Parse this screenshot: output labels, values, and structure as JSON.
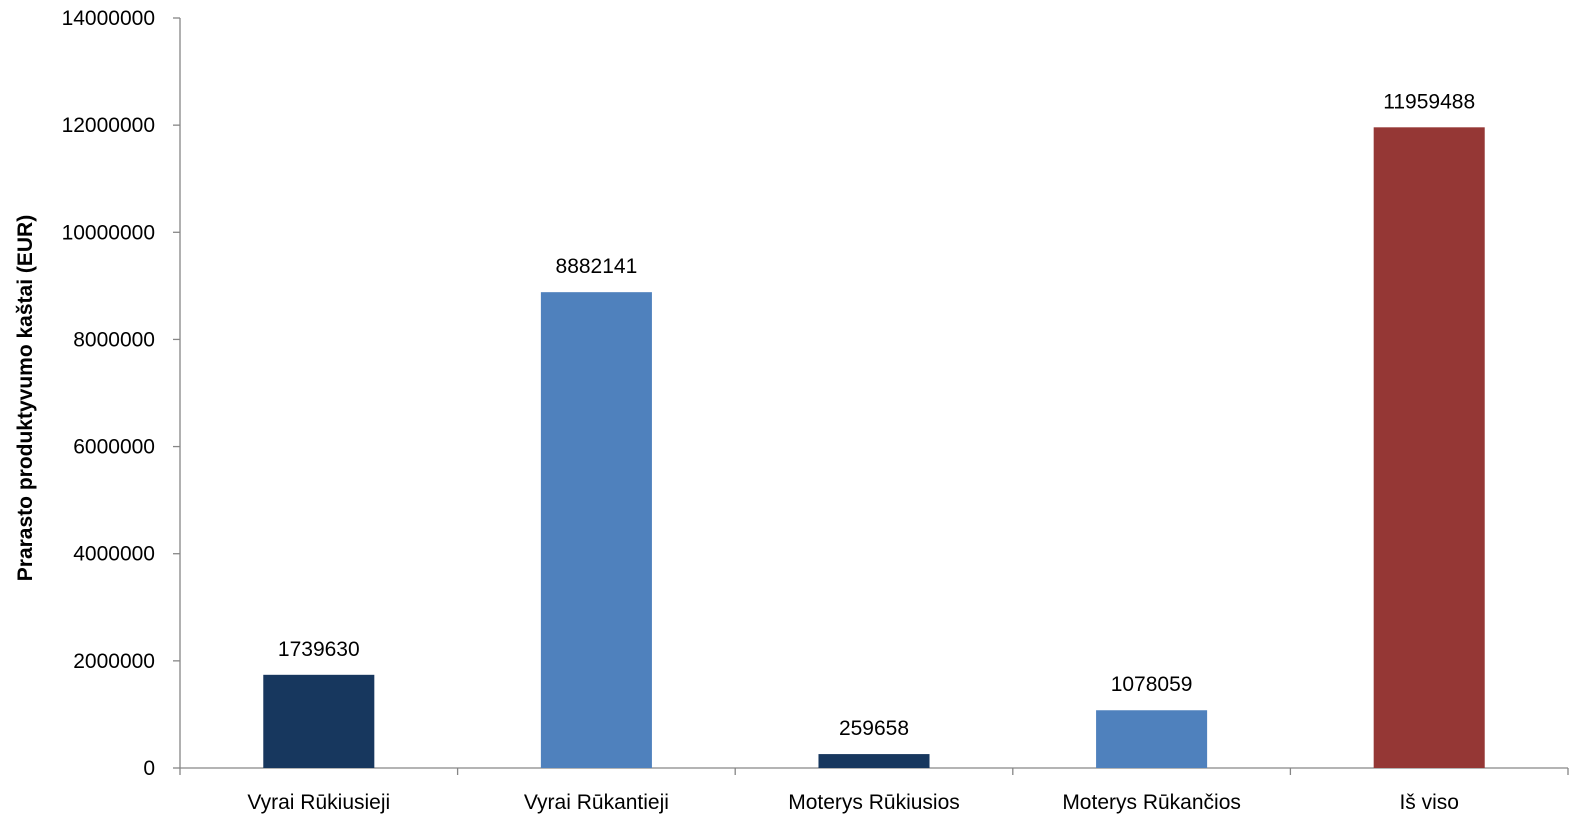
{
  "chart_data": {
    "type": "bar",
    "title": "",
    "xlabel": "",
    "ylabel": "Prarasto produktyvumo kaštai (EUR)",
    "categories": [
      "Vyrai Rūkiusieji",
      "Vyrai Rūkantieji",
      "Moterys Rūkiusios",
      "Moterys Rūkančios",
      "Iš viso"
    ],
    "values": [
      1739630,
      8882141,
      259658,
      1078059,
      11959488
    ],
    "data_labels": [
      "1739630",
      "8882141",
      "259658",
      "1078059",
      "11959488"
    ],
    "bar_colors": [
      "#17375e",
      "#4f81bd",
      "#17375e",
      "#4f81bd",
      "#953735"
    ],
    "ylim": [
      0,
      14000000
    ],
    "yticks": [
      0,
      2000000,
      4000000,
      6000000,
      8000000,
      10000000,
      12000000,
      14000000
    ],
    "ytick_labels": [
      "0",
      "2000000",
      "4000000",
      "6000000",
      "8000000",
      "10000000",
      "12000000",
      "14000000"
    ],
    "grid": false,
    "legend": "none",
    "axis_color": "#868686"
  }
}
